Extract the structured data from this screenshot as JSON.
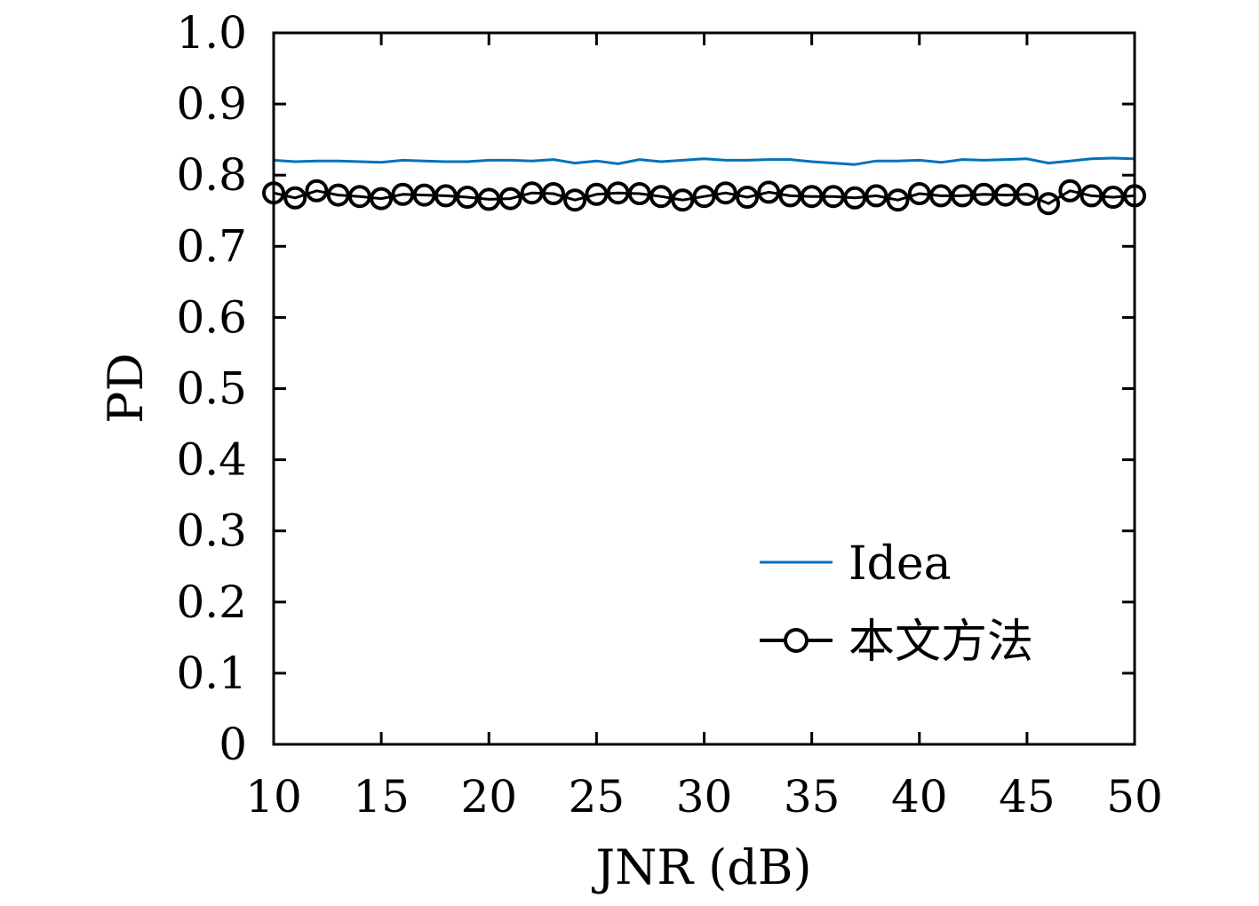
{
  "chart_data": {
    "type": "line",
    "title": "",
    "xlabel": "JNR (dB)",
    "ylabel": "PD",
    "xlim": [
      10,
      50
    ],
    "ylim": [
      0,
      1.0
    ],
    "xticks": [
      "10",
      "15",
      "20",
      "25",
      "30",
      "35",
      "40",
      "45",
      "50"
    ],
    "yticks": [
      "0",
      "0.1",
      "0.2",
      "0.3",
      "0.4",
      "0.5",
      "0.6",
      "0.7",
      "0.8",
      "0.9",
      "1.0"
    ],
    "grid": false,
    "legend_position": "bottom-right",
    "x": [
      10,
      11,
      12,
      13,
      14,
      15,
      16,
      17,
      18,
      19,
      20,
      21,
      22,
      23,
      24,
      25,
      26,
      27,
      28,
      29,
      30,
      31,
      32,
      33,
      34,
      35,
      36,
      37,
      38,
      39,
      40,
      41,
      42,
      43,
      44,
      45,
      46,
      47,
      48,
      49,
      50
    ],
    "series": [
      {
        "name": "Idea",
        "color": "#0072BD",
        "marker": "none",
        "values": [
          0.821,
          0.819,
          0.82,
          0.82,
          0.819,
          0.818,
          0.821,
          0.82,
          0.819,
          0.819,
          0.821,
          0.821,
          0.82,
          0.822,
          0.817,
          0.82,
          0.816,
          0.822,
          0.819,
          0.821,
          0.823,
          0.821,
          0.821,
          0.822,
          0.822,
          0.819,
          0.817,
          0.815,
          0.82,
          0.82,
          0.821,
          0.818,
          0.822,
          0.821,
          0.822,
          0.823,
          0.817,
          0.82,
          0.823,
          0.824,
          0.823
        ]
      },
      {
        "name": "本文方法",
        "color": "#000000",
        "marker": "circle",
        "values": [
          0.775,
          0.768,
          0.778,
          0.772,
          0.77,
          0.767,
          0.773,
          0.772,
          0.771,
          0.769,
          0.766,
          0.767,
          0.775,
          0.774,
          0.765,
          0.773,
          0.775,
          0.774,
          0.77,
          0.765,
          0.77,
          0.775,
          0.769,
          0.776,
          0.771,
          0.77,
          0.77,
          0.768,
          0.771,
          0.765,
          0.774,
          0.771,
          0.771,
          0.773,
          0.772,
          0.773,
          0.76,
          0.778,
          0.771,
          0.769,
          0.771
        ]
      }
    ]
  }
}
